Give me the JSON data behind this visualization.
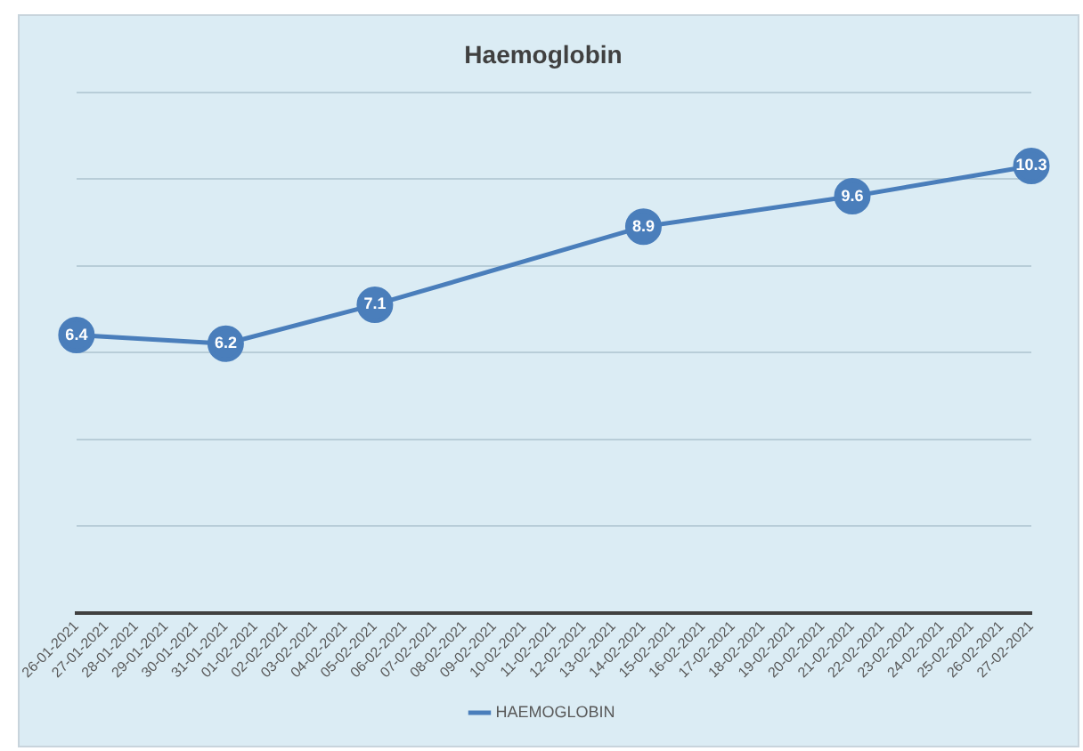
{
  "chart_data": {
    "type": "line",
    "title": "Haemoglobin",
    "categories": [
      "26-01-2021",
      "27-01-2021",
      "28-01-2021",
      "29-01-2021",
      "30-01-2021",
      "31-01-2021",
      "01-02-2021",
      "02-02-2021",
      "03-02-2021",
      "04-02-2021",
      "05-02-2021",
      "06-02-2021",
      "07-02-2021",
      "08-02-2021",
      "09-02-2021",
      "10-02-2021",
      "11-02-2021",
      "12-02-2021",
      "13-02-2021",
      "14-02-2021",
      "15-02-2021",
      "16-02-2021",
      "17-02-2021",
      "18-02-2021",
      "19-02-2021",
      "20-02-2021",
      "21-02-2021",
      "22-02-2021",
      "23-02-2021",
      "24-02-2021",
      "25-02-2021",
      "26-02-2021",
      "27-02-2021"
    ],
    "series": [
      {
        "name": "HAEMOGLOBIN",
        "color": "#4a7ebb",
        "values": [
          6.4,
          null,
          null,
          null,
          null,
          6.2,
          null,
          null,
          null,
          null,
          7.1,
          null,
          null,
          null,
          null,
          null,
          null,
          null,
          null,
          8.9,
          null,
          null,
          null,
          null,
          null,
          null,
          9.6,
          null,
          null,
          null,
          null,
          null,
          10.3
        ]
      }
    ],
    "ylim": [
      0,
      12
    ],
    "yticks": [
      {
        "value": 0,
        "label": null
      },
      {
        "value": 2,
        "label": null
      },
      {
        "value": 4,
        "label": null
      },
      {
        "value": 6,
        "label": null
      },
      {
        "value": 8,
        "label": null
      },
      {
        "value": 10,
        "label": null
      },
      {
        "value": 12,
        "label": null
      }
    ],
    "tick_labels": "x",
    "grid": "y",
    "legend": "bottom",
    "marker": "circle",
    "line_style": "solid",
    "data_labels": true
  }
}
